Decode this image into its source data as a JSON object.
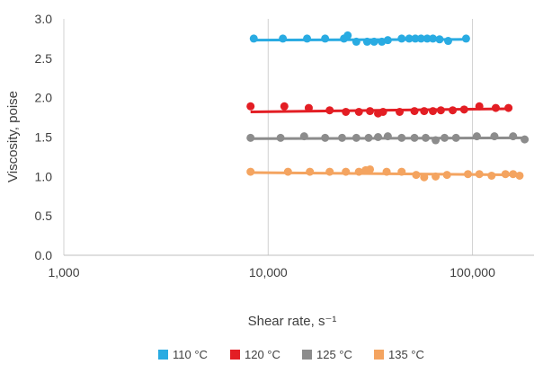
{
  "chart_data": {
    "type": "scatter",
    "xlabel": "Shear rate, s⁻¹",
    "ylabel": "Viscosity, poise",
    "xscale": "log",
    "xlim": [
      1000,
      200000
    ],
    "ylim": [
      0,
      3.0
    ],
    "x_ticks": [
      1000,
      10000,
      100000
    ],
    "x_tick_labels": [
      "1,000",
      "10,000",
      "100,000"
    ],
    "y_ticks": [
      0,
      0.5,
      1.0,
      1.5,
      2.0,
      2.5,
      3.0
    ],
    "y_tick_labels": [
      "0.0",
      "0.5",
      "1.0",
      "1.5",
      "2.0",
      "2.5",
      "3.0"
    ],
    "grid": "vertical",
    "legend_position": "bottom",
    "trendlines": true,
    "series": [
      {
        "name": "110 °C",
        "color": "#29abe2",
        "trend": {
          "x": [
            8500,
            95000
          ],
          "y": [
            2.73,
            2.74
          ]
        },
        "points": [
          [
            8500,
            2.75
          ],
          [
            11800,
            2.75
          ],
          [
            15500,
            2.75
          ],
          [
            19000,
            2.75
          ],
          [
            23500,
            2.75
          ],
          [
            24500,
            2.79
          ],
          [
            27000,
            2.71
          ],
          [
            30500,
            2.71
          ],
          [
            33000,
            2.71
          ],
          [
            36000,
            2.71
          ],
          [
            38500,
            2.73
          ],
          [
            45000,
            2.75
          ],
          [
            49000,
            2.75
          ],
          [
            52500,
            2.75
          ],
          [
            56000,
            2.75
          ],
          [
            60000,
            2.75
          ],
          [
            64000,
            2.75
          ],
          [
            69000,
            2.74
          ],
          [
            76000,
            2.72
          ],
          [
            93000,
            2.75
          ]
        ]
      },
      {
        "name": "120 °C",
        "color": "#e31e24",
        "trend": {
          "x": [
            8200,
            155000
          ],
          "y": [
            1.82,
            1.86
          ]
        },
        "points": [
          [
            8200,
            1.89
          ],
          [
            12000,
            1.89
          ],
          [
            15800,
            1.87
          ],
          [
            20000,
            1.84
          ],
          [
            24000,
            1.82
          ],
          [
            27800,
            1.82
          ],
          [
            31500,
            1.83
          ],
          [
            34500,
            1.8
          ],
          [
            36500,
            1.82
          ],
          [
            44000,
            1.82
          ],
          [
            52000,
            1.83
          ],
          [
            58000,
            1.83
          ],
          [
            64000,
            1.83
          ],
          [
            70000,
            1.84
          ],
          [
            80000,
            1.84
          ],
          [
            91000,
            1.85
          ],
          [
            108000,
            1.89
          ],
          [
            130000,
            1.87
          ],
          [
            150000,
            1.87
          ]
        ]
      },
      {
        "name": "125 °C",
        "color": "#8c8c8c",
        "trend": {
          "x": [
            8200,
            185000
          ],
          "y": [
            1.48,
            1.49
          ]
        },
        "points": [
          [
            8200,
            1.49
          ],
          [
            11500,
            1.49
          ],
          [
            15000,
            1.51
          ],
          [
            19000,
            1.49
          ],
          [
            23000,
            1.49
          ],
          [
            27000,
            1.49
          ],
          [
            31000,
            1.49
          ],
          [
            34500,
            1.5
          ],
          [
            38500,
            1.51
          ],
          [
            45000,
            1.49
          ],
          [
            52000,
            1.49
          ],
          [
            59000,
            1.49
          ],
          [
            66000,
            1.46
          ],
          [
            73000,
            1.49
          ],
          [
            83000,
            1.49
          ],
          [
            105000,
            1.51
          ],
          [
            128000,
            1.51
          ],
          [
            158000,
            1.51
          ],
          [
            180000,
            1.47
          ]
        ]
      },
      {
        "name": "135 °C",
        "color": "#f4a460",
        "trend": {
          "x": [
            8200,
            170000
          ],
          "y": [
            1.05,
            1.02
          ]
        },
        "points": [
          [
            8200,
            1.06
          ],
          [
            12500,
            1.06
          ],
          [
            16000,
            1.06
          ],
          [
            20000,
            1.06
          ],
          [
            24000,
            1.06
          ],
          [
            27800,
            1.06
          ],
          [
            30000,
            1.08
          ],
          [
            31500,
            1.09
          ],
          [
            38000,
            1.06
          ],
          [
            45000,
            1.06
          ],
          [
            53000,
            1.02
          ],
          [
            58000,
            0.99
          ],
          [
            66000,
            1.0
          ],
          [
            75000,
            1.02
          ],
          [
            95000,
            1.03
          ],
          [
            108000,
            1.03
          ],
          [
            124000,
            1.01
          ],
          [
            145000,
            1.03
          ],
          [
            158000,
            1.03
          ],
          [
            170000,
            1.01
          ]
        ]
      }
    ]
  }
}
